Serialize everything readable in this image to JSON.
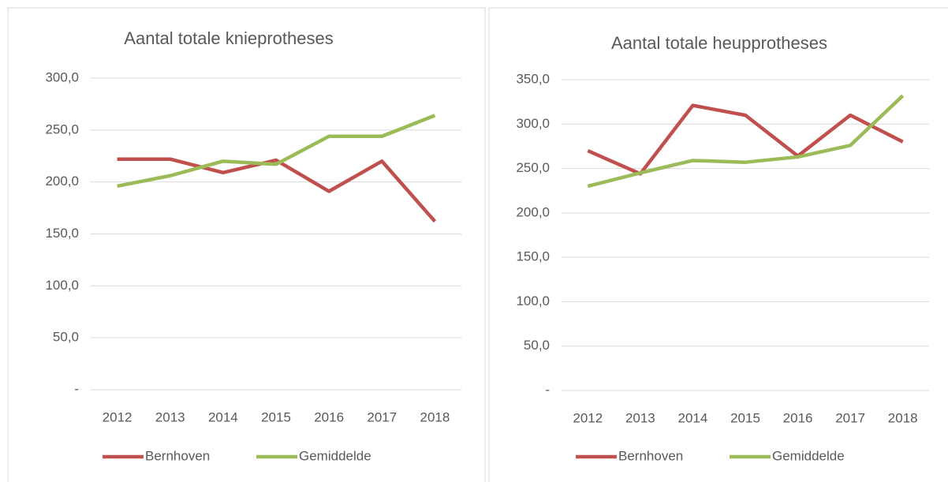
{
  "chart_data": [
    {
      "type": "line",
      "title": "Aantal totale knieprotheses",
      "categories": [
        "2012",
        "2013",
        "2014",
        "2015",
        "2016",
        "2017",
        "2018"
      ],
      "series": [
        {
          "name": "Bernhoven",
          "color": "#c0504d",
          "values": [
            222,
            222,
            209,
            221,
            191,
            220,
            162
          ]
        },
        {
          "name": "Gemiddelde",
          "color": "#9bbb59",
          "values": [
            196,
            206,
            220,
            217,
            244,
            244,
            264
          ]
        }
      ],
      "ylim": [
        0,
        300
      ],
      "yticks": [
        {
          "value": 0,
          "label": "-"
        },
        {
          "value": 50,
          "label": "50,0"
        },
        {
          "value": 100,
          "label": "100,0"
        },
        {
          "value": 150,
          "label": "150,0"
        },
        {
          "value": 200,
          "label": "200,0"
        },
        {
          "value": 250,
          "label": "250,0"
        },
        {
          "value": 300,
          "label": "300,0"
        }
      ],
      "grid": true,
      "legend": "bottom"
    },
    {
      "type": "line",
      "title": "Aantal totale heupprotheses",
      "categories": [
        "2012",
        "2013",
        "2014",
        "2015",
        "2016",
        "2017",
        "2018"
      ],
      "series": [
        {
          "name": "Bernhoven",
          "color": "#c0504d",
          "values": [
            270,
            244,
            321,
            310,
            264,
            310,
            280
          ]
        },
        {
          "name": "Gemiddelde",
          "color": "#9bbb59",
          "values": [
            230,
            245,
            259,
            257,
            263,
            276,
            332
          ]
        }
      ],
      "ylim": [
        0,
        350
      ],
      "yticks": [
        {
          "value": 0,
          "label": "-"
        },
        {
          "value": 50,
          "label": "50,0"
        },
        {
          "value": 100,
          "label": "100,0"
        },
        {
          "value": 150,
          "label": "150,0"
        },
        {
          "value": 200,
          "label": "200,0"
        },
        {
          "value": 250,
          "label": "250,0"
        },
        {
          "value": 300,
          "label": "300,0"
        },
        {
          "value": 350,
          "label": "350,0"
        }
      ],
      "grid": true,
      "legend": "bottom"
    }
  ]
}
